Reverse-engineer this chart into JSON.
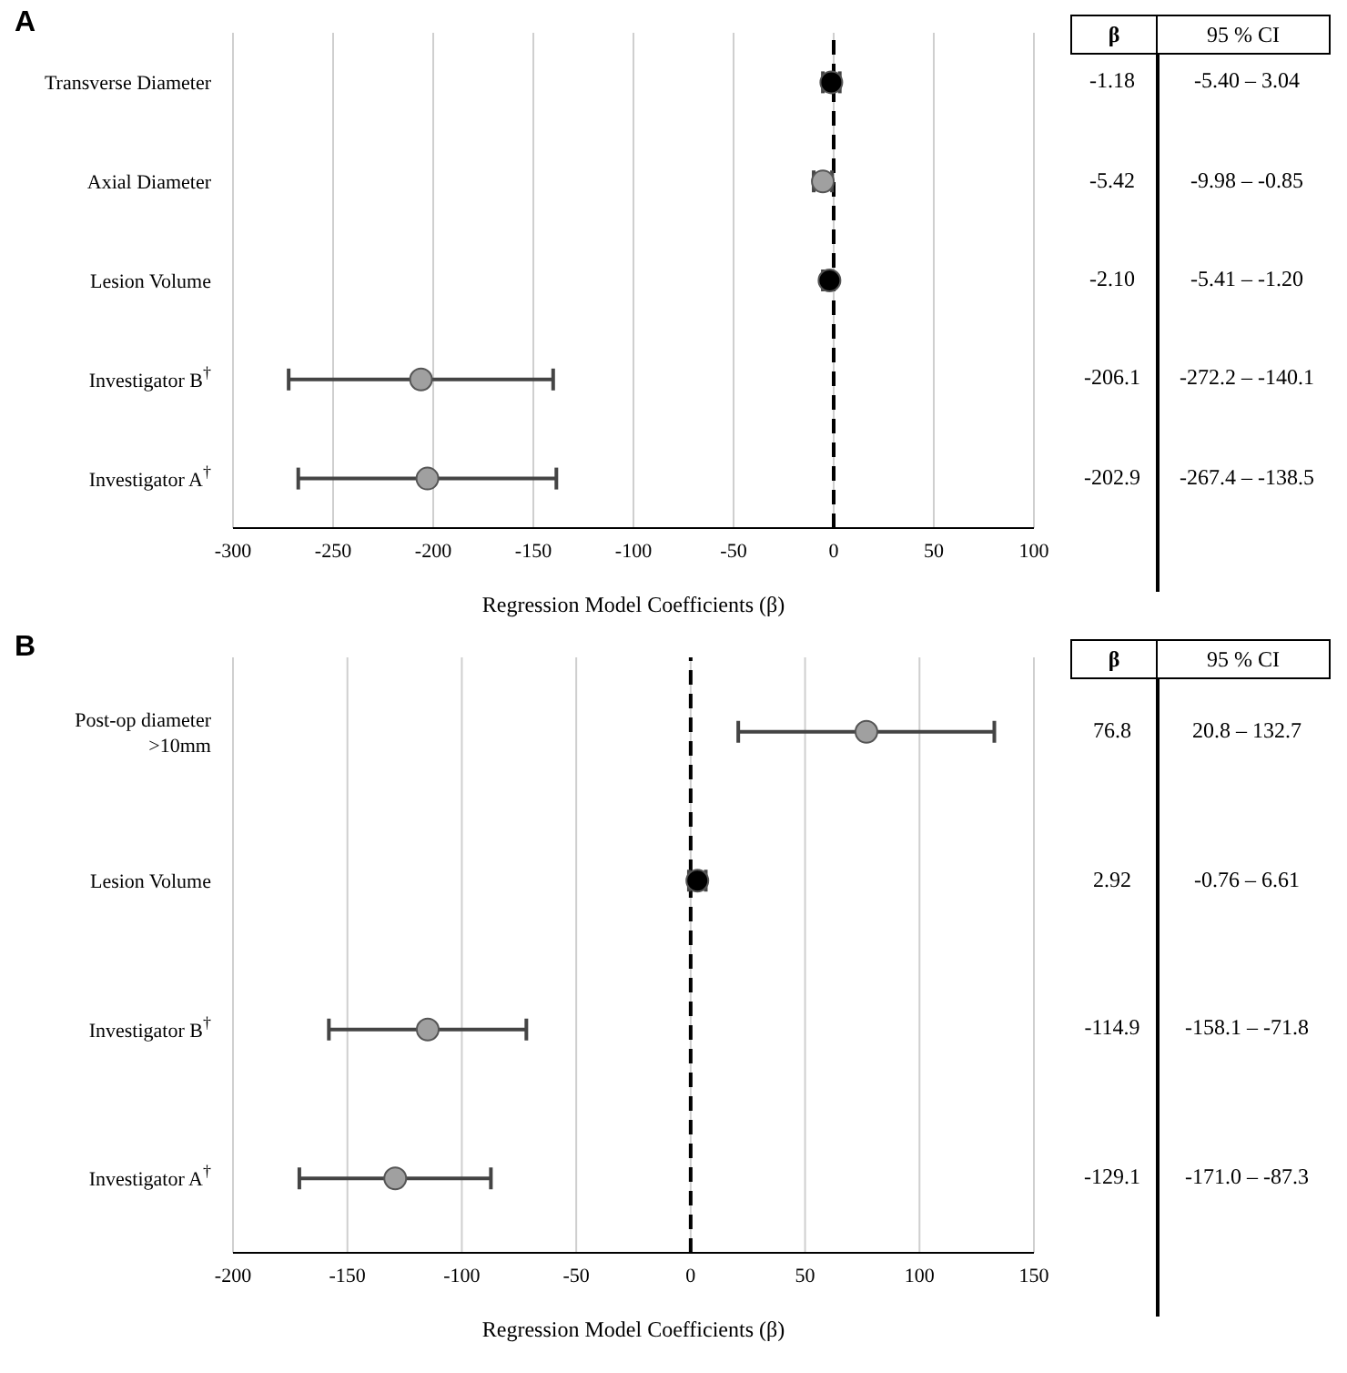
{
  "chart_data": [
    {
      "type": "scatter",
      "title": "A",
      "orientation": "horizontal",
      "xlabel": "Regression Model Coefficients (β)",
      "categories": [
        "Transverse Diameter",
        "Axial Diameter",
        "Lesion Volume",
        "Investigator B$^{†}$",
        "Investigator A$^{†}$"
      ],
      "values": [
        -1.18,
        -5.42,
        -2.1,
        -206.1,
        -202.9
      ],
      "colors": [
        "#000000",
        "#a0a0a0",
        "#000000",
        "#a0a0a0",
        "#a0a0a0"
      ],
      "errors": [
        [
          -5.4,
          3.04
        ],
        [
          -9.98,
          -0.85
        ],
        [
          -5.41,
          -1.2
        ],
        [
          -272.2,
          -140.1
        ],
        [
          -267.4,
          -138.5
        ]
      ],
      "value_labels": [
        "-1.18",
        "-5.42",
        "-2.10",
        "-206.1",
        "-202.9"
      ],
      "xlim": [
        -300,
        100
      ],
      "xticks": [
        -300,
        -250,
        -200,
        -150,
        -100,
        -50,
        0,
        50,
        100
      ],
      "grid": "x",
      "marker": "circle",
      "ref_lines": [
        {
          "axis": "x",
          "value": 0,
          "line_style": "dashed",
          "color": "#000000"
        }
      ],
      "annotations": [
        "β",
        "95 % CI",
        "-5.40 – 3.04",
        "-9.98 – -0.85",
        "-5.41 – -1.20",
        "-272.2 – -140.1",
        "-267.4 – -138.5"
      ]
    },
    {
      "type": "scatter",
      "title": "B",
      "orientation": "horizontal",
      "xlabel": "Regression Model Coefficients (β)",
      "categories": [
        "Post-op diameter >10mm",
        "Lesion Volume",
        "Investigator B$^{†}$",
        "Investigator A$^{†}$"
      ],
      "values": [
        76.8,
        2.92,
        -114.9,
        -129.1
      ],
      "colors": [
        "#a0a0a0",
        "#000000",
        "#a0a0a0",
        "#a0a0a0"
      ],
      "errors": [
        [
          20.8,
          132.7
        ],
        [
          -0.76,
          6.61
        ],
        [
          -158.1,
          -71.8
        ],
        [
          -171.0,
          -87.3
        ]
      ],
      "value_labels": [
        "76.8",
        "2.92",
        "-114.9",
        "-129.1"
      ],
      "xlim": [
        -200,
        150
      ],
      "xticks": [
        -200,
        -150,
        -100,
        -50,
        0,
        50,
        100,
        150
      ],
      "grid": "x",
      "marker": "circle",
      "ref_lines": [
        {
          "axis": "x",
          "value": 0,
          "line_style": "dashed",
          "color": "#000000"
        }
      ],
      "annotations": [
        "β",
        "95 % CI",
        "20.8 – 132.7",
        "-0.76 – 6.61",
        "-158.1 – -71.8",
        "-171.0 – -87.3"
      ]
    }
  ]
}
